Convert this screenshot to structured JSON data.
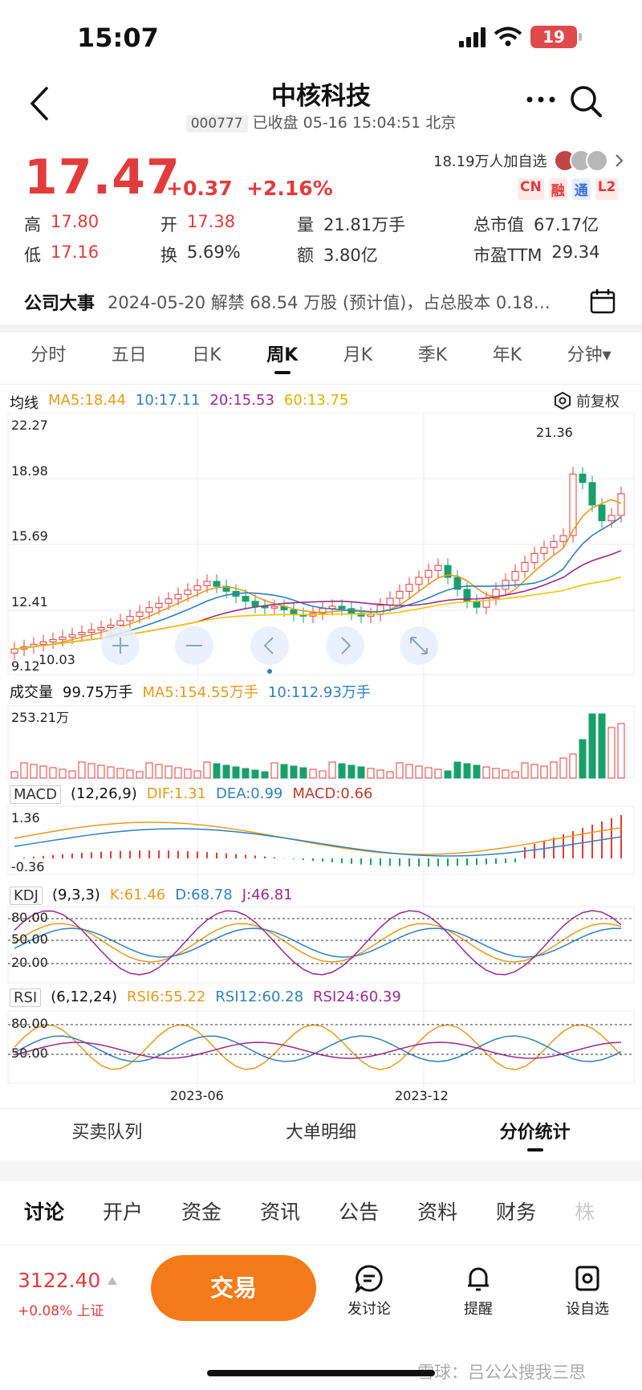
{
  "status": {
    "time": "15:07",
    "battery": "19"
  },
  "header": {
    "title": "中核科技",
    "code": "000777",
    "status": "已收盘 05-16 15:04:51 北京"
  },
  "quote": {
    "price": "17.47",
    "change": "+0.37",
    "change_pct": "+2.16%",
    "watchers": "18.19万人加自选",
    "tags": [
      "CN",
      "融",
      "通",
      "L2"
    ],
    "stats_row1": [
      {
        "label": "高",
        "value": "17.80"
      },
      {
        "label": "开",
        "value": "17.38"
      },
      {
        "label": "量",
        "value": "21.81万手"
      },
      {
        "label": "总市值",
        "value": "67.17亿"
      }
    ],
    "stats_row2": [
      {
        "label": "低",
        "value": "17.16"
      },
      {
        "label": "换",
        "value": "5.69%"
      },
      {
        "label": "额",
        "value": "3.80亿"
      },
      {
        "label": "市盈TTM",
        "value": "29.34"
      }
    ]
  },
  "events": {
    "label": "公司大事",
    "text": "2024-05-20 解禁 68.54 万股 (预计值)，占总股本 0.18…"
  },
  "period_tabs": [
    "分时",
    "五日",
    "日K",
    "周K",
    "月K",
    "季K",
    "年K",
    "分钟▾"
  ],
  "kline": {
    "legend": {
      "title": "均线",
      "ma5": "MA5:18.44",
      "ma10": "10:17.11",
      "ma20": "20:15.53",
      "ma60": "60:13.75"
    },
    "adjust": "前复权",
    "y_ticks": [
      "22.27",
      "18.98",
      "15.69",
      "12.41",
      "9.12"
    ],
    "high_label": "21.36",
    "low_label": "10.03"
  },
  "volume": {
    "title": "成交量",
    "value": "99.75万手",
    "ma5": "MA5:154.55万手",
    "ma10": "10:112.93万手",
    "tick": "253.21万"
  },
  "macd": {
    "title": "MACD",
    "params": "(12,26,9)",
    "dif": "DIF:1.31",
    "dea": "DEA:0.99",
    "macd": "MACD:0.66",
    "top": "1.36",
    "bottom": "-0.36"
  },
  "kdj": {
    "title": "KDJ",
    "params": "(9,3,3)",
    "k": "K:61.46",
    "d": "D:68.78",
    "j": "J:46.81",
    "ticks": [
      "80.00",
      "50.00",
      "20.00"
    ]
  },
  "rsi": {
    "title": "RSI",
    "params": "(6,12,24)",
    "rsi6": "RSI6:55.22",
    "rsi12": "RSI12:60.28",
    "rsi24": "RSI24:60.39",
    "ticks": [
      "80.00",
      "50.00"
    ]
  },
  "x_labels": [
    "2023-06",
    "2023-12"
  ],
  "sub_tabs": [
    "买卖队列",
    "大单明细",
    "分价统计"
  ],
  "bottom_tabs": [
    "讨论",
    "开户",
    "资金",
    "资讯",
    "公告",
    "资料",
    "财务",
    "株"
  ],
  "index": {
    "value": "3122.40",
    "change": "+0.08%",
    "name": "上证"
  },
  "trade_label": "交易",
  "tools": [
    "发讨论",
    "提醒",
    "设自选"
  ],
  "watermark": "雪球：吕公公搜我三思",
  "colors": {
    "up": "#e33b3b",
    "down": "#18a06b",
    "ma5": "#e79a1c",
    "ma10": "#2f7fc1",
    "ma20": "#9b2a8f",
    "ma60": "#f2c400",
    "accent": "#f57a19"
  }
}
